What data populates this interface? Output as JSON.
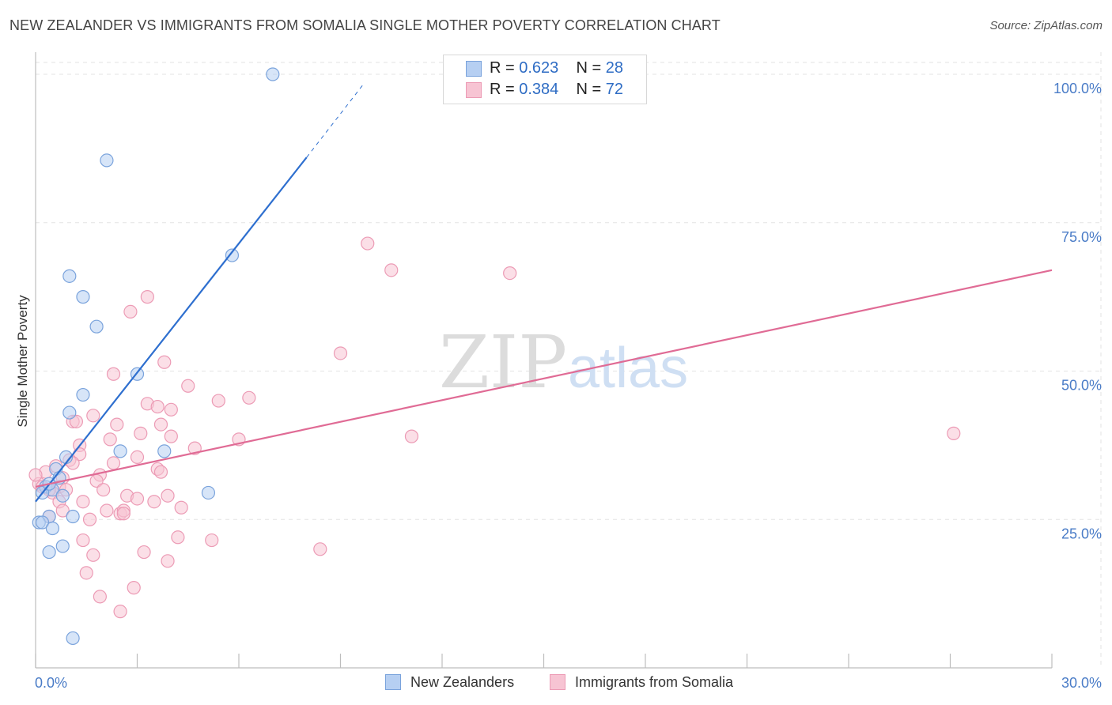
{
  "title": "NEW ZEALANDER VS IMMIGRANTS FROM SOMALIA SINGLE MOTHER POVERTY CORRELATION CHART",
  "source": "Source: ZipAtlas.com",
  "watermark": {
    "zip": "ZIP",
    "atlas": "atlas"
  },
  "legend": {
    "rows": [
      {
        "r_label": "R =",
        "r_value": "0.623",
        "n_label": "N =",
        "n_value": "28"
      },
      {
        "r_label": "R =",
        "r_value": "0.384",
        "n_label": "N =",
        "n_value": "72"
      }
    ]
  },
  "bottom_legend": [
    "New Zealanders",
    "Immigrants from Somalia"
  ],
  "colors": {
    "blue_fill": "#b6cff2",
    "blue_stroke": "#7aa3dc",
    "blue_line": "#2e6fcf",
    "pink_fill": "#f7c4d3",
    "pink_stroke": "#ec9bb5",
    "pink_line": "#e06b95",
    "axis_text": "#4a7cc7",
    "grid": "#e3e3e3"
  },
  "chart_data": {
    "type": "scatter",
    "title": "NEW ZEALANDER VS IMMIGRANTS FROM SOMALIA SINGLE MOTHER POVERTY CORRELATION CHART",
    "xlabel": "",
    "ylabel": "Single Mother Poverty",
    "xlim": [
      0,
      30
    ],
    "ylim": [
      0,
      102
    ],
    "x_tick_labels": [
      {
        "value": 0,
        "label": "0.0%"
      },
      {
        "value": 30,
        "label": "30.0%"
      }
    ],
    "y_tick_labels": [
      {
        "value": 100,
        "label": "100.0%"
      },
      {
        "value": 75,
        "label": "75.0%"
      },
      {
        "value": 50,
        "label": "50.0%"
      },
      {
        "value": 25,
        "label": "25.0%"
      }
    ],
    "series": [
      {
        "name": "New Zealanders",
        "r": 0.623,
        "n": 28,
        "points": [
          {
            "x": 7.0,
            "y": 100
          },
          {
            "x": 2.1,
            "y": 85.5
          },
          {
            "x": 5.8,
            "y": 69.5
          },
          {
            "x": 1.0,
            "y": 66
          },
          {
            "x": 1.4,
            "y": 62.5
          },
          {
            "x": 1.8,
            "y": 57.5
          },
          {
            "x": 3.0,
            "y": 49.5
          },
          {
            "x": 1.4,
            "y": 46
          },
          {
            "x": 1.0,
            "y": 43
          },
          {
            "x": 2.5,
            "y": 36.5
          },
          {
            "x": 3.8,
            "y": 36.5
          },
          {
            "x": 0.9,
            "y": 35.5
          },
          {
            "x": 0.6,
            "y": 33.5
          },
          {
            "x": 0.7,
            "y": 32
          },
          {
            "x": 0.3,
            "y": 30.5
          },
          {
            "x": 0.5,
            "y": 30
          },
          {
            "x": 0.2,
            "y": 29.5
          },
          {
            "x": 0.8,
            "y": 29
          },
          {
            "x": 5.1,
            "y": 29.5
          },
          {
            "x": 0.4,
            "y": 25.5
          },
          {
            "x": 1.1,
            "y": 25.5
          },
          {
            "x": 0.1,
            "y": 24.5
          },
          {
            "x": 0.2,
            "y": 24.5
          },
          {
            "x": 0.5,
            "y": 23.5
          },
          {
            "x": 0.8,
            "y": 20.5
          },
          {
            "x": 0.4,
            "y": 19.5
          },
          {
            "x": 1.1,
            "y": 5
          },
          {
            "x": 0.4,
            "y": 31
          }
        ],
        "trend": {
          "x_start": 0.0,
          "y_start": 28.0,
          "x_end": 8.0,
          "y_end": 86.0,
          "dash_to_x": 9.7,
          "dash_to_y": 98.5
        }
      },
      {
        "name": "Immigrants from Somalia",
        "r": 0.384,
        "n": 72,
        "points": [
          {
            "x": 9.8,
            "y": 71.5
          },
          {
            "x": 10.5,
            "y": 67
          },
          {
            "x": 14.0,
            "y": 66.5
          },
          {
            "x": 3.3,
            "y": 62.5
          },
          {
            "x": 2.8,
            "y": 60
          },
          {
            "x": 9.0,
            "y": 53
          },
          {
            "x": 3.8,
            "y": 51.5
          },
          {
            "x": 2.3,
            "y": 49.5
          },
          {
            "x": 4.5,
            "y": 47.5
          },
          {
            "x": 6.3,
            "y": 45.5
          },
          {
            "x": 5.4,
            "y": 45
          },
          {
            "x": 3.3,
            "y": 44.5
          },
          {
            "x": 3.6,
            "y": 44
          },
          {
            "x": 4.0,
            "y": 43.5
          },
          {
            "x": 1.7,
            "y": 42.5
          },
          {
            "x": 1.1,
            "y": 41.5
          },
          {
            "x": 1.2,
            "y": 41.5
          },
          {
            "x": 2.4,
            "y": 41
          },
          {
            "x": 3.7,
            "y": 41
          },
          {
            "x": 3.1,
            "y": 39.5
          },
          {
            "x": 4.0,
            "y": 39
          },
          {
            "x": 2.2,
            "y": 38.5
          },
          {
            "x": 11.1,
            "y": 39
          },
          {
            "x": 6.0,
            "y": 38.5
          },
          {
            "x": 27.1,
            "y": 39.5
          },
          {
            "x": 1.3,
            "y": 37.5
          },
          {
            "x": 4.7,
            "y": 37
          },
          {
            "x": 1.3,
            "y": 36
          },
          {
            "x": 3.0,
            "y": 35.5
          },
          {
            "x": 1.0,
            "y": 35
          },
          {
            "x": 1.1,
            "y": 34.5
          },
          {
            "x": 2.3,
            "y": 34.5
          },
          {
            "x": 3.6,
            "y": 33.5
          },
          {
            "x": 3.7,
            "y": 33
          },
          {
            "x": 0.3,
            "y": 33
          },
          {
            "x": 1.9,
            "y": 32.5
          },
          {
            "x": 0.8,
            "y": 32
          },
          {
            "x": 1.8,
            "y": 31.5
          },
          {
            "x": 0.1,
            "y": 31
          },
          {
            "x": 0.7,
            "y": 30.5
          },
          {
            "x": 0.2,
            "y": 30.5
          },
          {
            "x": 0.9,
            "y": 30
          },
          {
            "x": 2.0,
            "y": 30
          },
          {
            "x": 0.5,
            "y": 29.5
          },
          {
            "x": 2.7,
            "y": 29
          },
          {
            "x": 3.9,
            "y": 29
          },
          {
            "x": 3.0,
            "y": 28.5
          },
          {
            "x": 3.5,
            "y": 28
          },
          {
            "x": 0.7,
            "y": 28
          },
          {
            "x": 1.4,
            "y": 28
          },
          {
            "x": 4.3,
            "y": 27
          },
          {
            "x": 0.8,
            "y": 26.5
          },
          {
            "x": 2.1,
            "y": 26.5
          },
          {
            "x": 2.5,
            "y": 26
          },
          {
            "x": 2.6,
            "y": 26.5
          },
          {
            "x": 2.6,
            "y": 26
          },
          {
            "x": 0.4,
            "y": 25.5
          },
          {
            "x": 1.6,
            "y": 25
          },
          {
            "x": 4.2,
            "y": 22
          },
          {
            "x": 5.2,
            "y": 21.5
          },
          {
            "x": 1.4,
            "y": 21.5
          },
          {
            "x": 8.4,
            "y": 20
          },
          {
            "x": 3.2,
            "y": 19.5
          },
          {
            "x": 1.7,
            "y": 19
          },
          {
            "x": 3.9,
            "y": 18
          },
          {
            "x": 1.5,
            "y": 16
          },
          {
            "x": 2.9,
            "y": 13.5
          },
          {
            "x": 1.9,
            "y": 12
          },
          {
            "x": 2.5,
            "y": 9.5
          },
          {
            "x": 0.0,
            "y": 32.5
          },
          {
            "x": 0.6,
            "y": 34
          },
          {
            "x": 0.4,
            "y": 30
          }
        ],
        "trend": {
          "x_start": 0.0,
          "y_start": 30.5,
          "x_end": 30.0,
          "y_end": 67.0
        }
      }
    ]
  }
}
